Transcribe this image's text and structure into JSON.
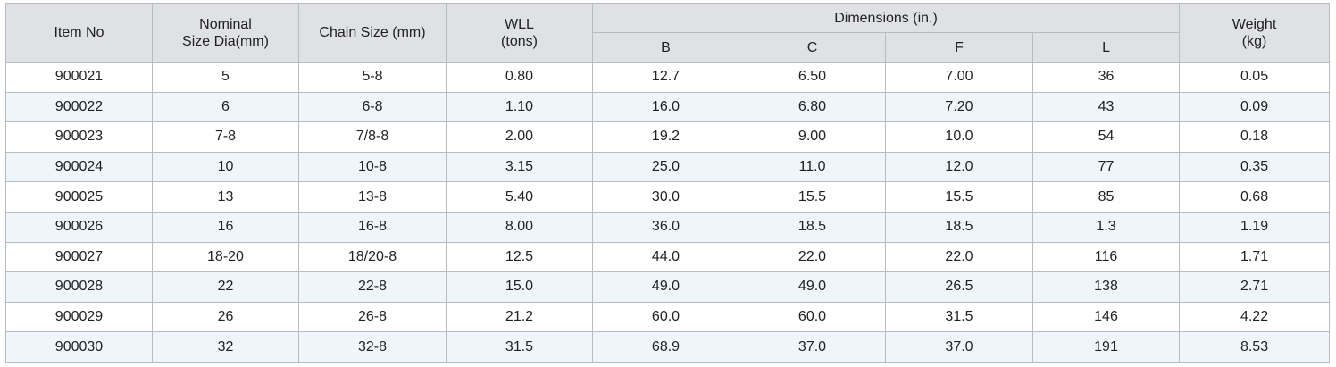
{
  "header": {
    "item_no": "Item No",
    "nominal_line1": "Nominal",
    "nominal_line2": "Size Dia(mm)",
    "chain_size": "Chain Size (mm)",
    "wll_line1": "WLL",
    "wll_line2": "(tons)",
    "dimensions": "Dimensions (in.)",
    "dim_b": "B",
    "dim_c": "C",
    "dim_f": "F",
    "dim_l": "L",
    "weight_line1": "Weight",
    "weight_line2": "(kg)"
  },
  "rows": [
    [
      "900021",
      "5",
      "5-8",
      "0.80",
      "12.7",
      "6.50",
      "7.00",
      "36",
      "0.05"
    ],
    [
      "900022",
      "6",
      "6-8",
      "1.10",
      "16.0",
      "6.80",
      "7.20",
      "43",
      "0.09"
    ],
    [
      "900023",
      "7-8",
      "7/8-8",
      "2.00",
      "19.2",
      "9.00",
      "10.0",
      "54",
      "0.18"
    ],
    [
      "900024",
      "10",
      "10-8",
      "3.15",
      "25.0",
      "11.0",
      "12.0",
      "77",
      "0.35"
    ],
    [
      "900025",
      "13",
      "13-8",
      "5.40",
      "30.0",
      "15.5",
      "15.5",
      "85",
      "0.68"
    ],
    [
      "900026",
      "16",
      "16-8",
      "8.00",
      "36.0",
      "18.5",
      "18.5",
      "1.3",
      "1.19"
    ],
    [
      "900027",
      "18-20",
      "18/20-8",
      "12.5",
      "44.0",
      "22.0",
      "22.0",
      "116",
      "1.71"
    ],
    [
      "900028",
      "22",
      "22-8",
      "15.0",
      "49.0",
      "49.0",
      "26.5",
      "138",
      "2.71"
    ],
    [
      "900029",
      "26",
      "26-8",
      "21.2",
      "60.0",
      "60.0",
      "31.5",
      "146",
      "4.22"
    ],
    [
      "900030",
      "32",
      "32-8",
      "31.5",
      "68.9",
      "37.0",
      "37.0",
      "191",
      "8.53"
    ]
  ]
}
